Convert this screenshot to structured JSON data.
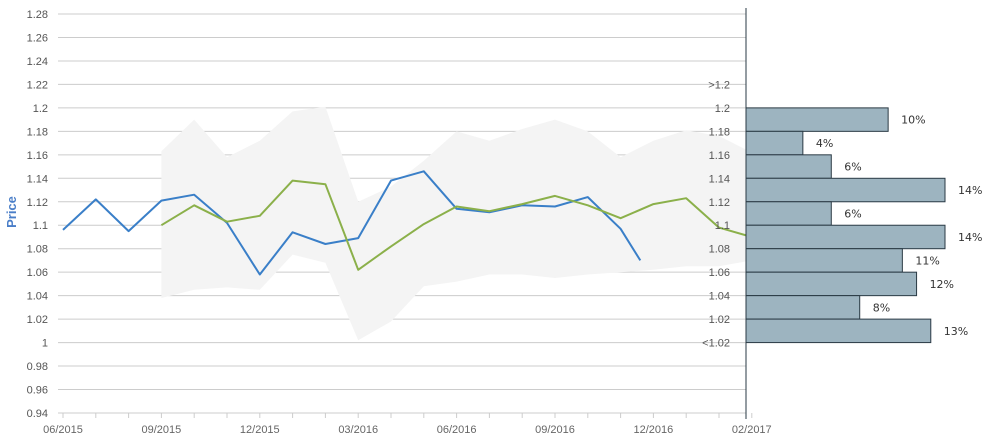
{
  "colors": {
    "price_line": "#3a7fc8",
    "forecast_line": "#8bb04a",
    "band": "#f4f4f4",
    "bars": "#9db4c0",
    "bar_stroke": "#2a3a44",
    "grid": "#cccccc",
    "axis_label": "#4a7ec8"
  },
  "chart_data": [
    {
      "type": "line",
      "ylabel": "Price",
      "ylim": [
        0.94,
        1.28
      ],
      "y_ticks": [
        "1.28",
        "1.26",
        "1.24",
        "1.22",
        "1.2",
        "1.18",
        "1.16",
        "1.14",
        "1.12",
        "1.1",
        "1.08",
        "1.06",
        "1.04",
        "1.02",
        "1",
        "0.98",
        "0.96",
        "0.94"
      ],
      "x_tick_labels": [
        "06/2015",
        "09/2015",
        "12/2015",
        "03/2016",
        "06/2016",
        "09/2016",
        "12/2016",
        "02/2017"
      ],
      "grid": true,
      "band": {
        "x": [
          3,
          4,
          5,
          6,
          7,
          8,
          9,
          10,
          11,
          12,
          13,
          14,
          15,
          16,
          17,
          18,
          19,
          20,
          21
        ],
        "upper": [
          1.163,
          1.19,
          1.158,
          1.172,
          1.197,
          1.201,
          1.12,
          1.133,
          1.155,
          1.18,
          1.172,
          1.182,
          1.19,
          1.18,
          1.158,
          1.172,
          1.181,
          1.176,
          1.162
        ],
        "lower": [
          1.038,
          1.045,
          1.047,
          1.045,
          1.075,
          1.068,
          1.002,
          1.018,
          1.048,
          1.052,
          1.058,
          1.058,
          1.055,
          1.058,
          1.06,
          1.062,
          1.065,
          1.065,
          1.07
        ]
      },
      "series": [
        {
          "x": [
            0,
            1,
            2,
            3,
            4,
            5,
            6,
            7,
            8,
            9,
            10,
            11,
            12,
            13,
            14,
            15,
            16,
            17
          ],
          "values": [
            1.096,
            1.122,
            1.095,
            1.121,
            1.126,
            1.102,
            1.058,
            1.094,
            1.084,
            1.089,
            1.138,
            1.146,
            1.114,
            1.111,
            1.117,
            1.116,
            1.124,
            1.097
          ]
        },
        {
          "x": [
            3,
            4,
            5,
            6,
            7,
            8,
            9,
            10,
            11,
            12,
            13,
            14,
            15,
            16,
            17,
            18,
            19,
            20,
            21
          ],
          "values": [
            1.1,
            1.117,
            1.103,
            1.108,
            1.138,
            1.135,
            1.062,
            1.082,
            1.101,
            1.116,
            1.112,
            1.118,
            1.125,
            1.117,
            1.106,
            1.118,
            1.123,
            1.098,
            1.09
          ]
        }
      ],
      "series_tail_x": 17.6,
      "series_tail_value": 1.07,
      "x_range": [
        0,
        21.0
      ]
    },
    {
      "type": "bar",
      "orientation": "horizontal",
      "categories": [
        "1.2",
        "1.18",
        "1.16",
        "1.14",
        "1.12",
        "1.1",
        "1.08",
        "1.06",
        "1.04",
        "1.02"
      ],
      "bin_labels": [
        ">1.2",
        "1.2",
        "1.18",
        "1.16",
        "1.14",
        "1.12",
        "1.1",
        "1.08",
        "1.06",
        "1.04",
        "1.02",
        "<1.02"
      ],
      "values": [
        10,
        4,
        6,
        14,
        6,
        14,
        11,
        12,
        8,
        13
      ],
      "value_labels": [
        "10%",
        "4%",
        "6%",
        "14%",
        "6%",
        "14%",
        "11%",
        "12%",
        "8%",
        "13%"
      ],
      "xlim": [
        0,
        14
      ]
    }
  ]
}
